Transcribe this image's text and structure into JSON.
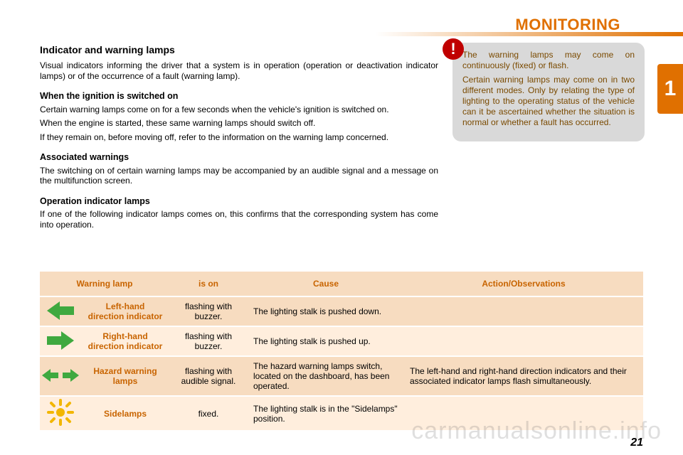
{
  "colors": {
    "accent": "#e07000",
    "tab_bg": "#e07000",
    "header_row_bg": "#f7dcc0",
    "header_text": "#c86400",
    "row_light_bg": "#ffeedd",
    "row_dark_bg": "#f7dcc0",
    "name_text": "#c86400",
    "callout_bg": "#d9d9d9",
    "callout_text": "#7a4a00",
    "callout_icon_bg": "#c00000",
    "icon_green": "#3fa93f",
    "icon_yellow": "#f2b600",
    "page_title_color": "#e07000",
    "body_text": "#000000"
  },
  "page_title": "MONITORING",
  "chapter_number": "1",
  "page_number": "21",
  "watermark": "carmanualsonline.info",
  "main": {
    "h1": "Indicator and warning lamps",
    "p1": "Visual indicators informing the driver that a system is in operation (operation or deactivation indicator lamps) or of the occurrence of a fault (warning lamp).",
    "h2a": "When the ignition is switched on",
    "p2": "Certain warning lamps come on for a few seconds when the vehicle's ignition is switched on.",
    "p3": "When the engine is started, these same warning lamps should switch off.",
    "p4": "If they remain on, before moving off, refer to the information on the warning lamp concerned.",
    "h2b": "Associated warnings",
    "p5": "The switching on of certain warning lamps may be accompanied by an audible signal and a message on the multifunction screen.",
    "h2c": "Operation indicator lamps",
    "p6": "If one of the following indicator lamps comes on, this confirms that the corresponding system has come into operation."
  },
  "callout": {
    "icon_glyph": "!",
    "p1": "The warning lamps may come on continuously (fixed) or flash.",
    "p2": "Certain warning lamps may come on in two different modes. Only by relating the type of lighting to the operating status of the vehicle can it be ascertained whether the situation is normal or whether a fault has occurred."
  },
  "table": {
    "headers": {
      "lamp": "Warning lamp",
      "is_on": "is on",
      "cause": "Cause",
      "action": "Action/Observations"
    },
    "col_widths": {
      "icon": 58,
      "name": 124,
      "ison": 110,
      "cause": 220
    },
    "rows": [
      {
        "icon": "arrow-left",
        "name": "Left-hand direction indicator",
        "is_on": "flashing with buzzer.",
        "cause": "The lighting stalk is pushed down.",
        "action": ""
      },
      {
        "icon": "arrow-right",
        "name": "Right-hand direction indicator",
        "is_on": "flashing with buzzer.",
        "cause": "The lighting stalk is pushed up.",
        "action": ""
      },
      {
        "icon": "hazard",
        "name": "Hazard warning lamps",
        "is_on": "flashing with audible signal.",
        "cause": "The hazard warning lamps switch, located on the dashboard, has been operated.",
        "action": "The left-hand and right-hand direction indicators and their associated indicator lamps flash simultaneously."
      },
      {
        "icon": "sidelamps",
        "name": "Sidelamps",
        "is_on": "fixed.",
        "cause": "The lighting stalk is in the \"Sidelamps\" position.",
        "action": ""
      }
    ]
  }
}
